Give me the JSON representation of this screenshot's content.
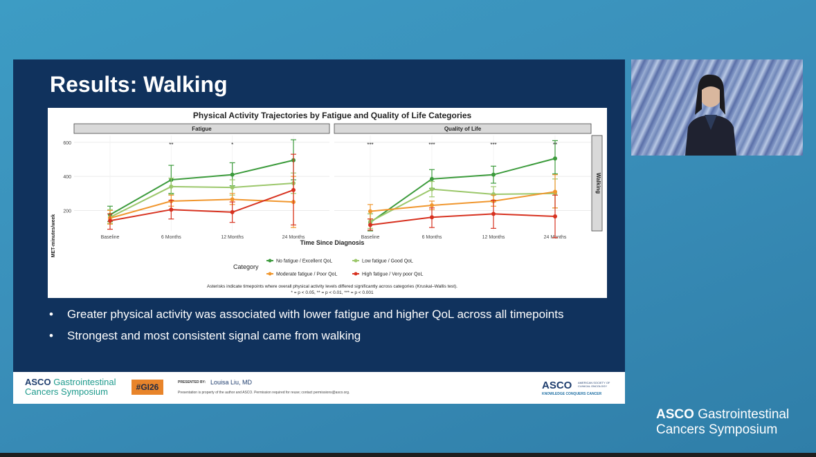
{
  "slide": {
    "title": "Results: Walking",
    "bullets": [
      "Greater physical activity was associated with lower fatigue and higher QoL across all timepoints",
      "Strongest and most consistent signal came from walking"
    ]
  },
  "footer": {
    "logo_main": "ASCO",
    "logo_line1": "Gastrointestinal",
    "logo_line2": "Cancers Symposium",
    "hashtag": "#GI26",
    "presented_by_label": "PRESENTED BY:",
    "presenter": "Louisa Liu, MD",
    "disclaimer": "Presentation is property of the author and ASCO. Permission required for reuse; contact permissions@asco.org.",
    "asco_right": "ASCO",
    "asco_right_small": "AMERICAN SOCIETY OF CLINICAL ONCOLOGY",
    "tagline": "KNOWLEDGE CONQUERS CANCER"
  },
  "corner_logo": {
    "main": "ASCO",
    "line1": "Gastrointestinal",
    "line2": "Cancers Symposium"
  },
  "chart_data": {
    "type": "line",
    "title": "Physical Activity Trajectories by Fatigue and Quality of Life Categories",
    "xlabel": "Time Since Diagnosis",
    "ylabel": "MET-minutes/week",
    "row_strip": "Walking",
    "categories": [
      "Baseline",
      "6 Months",
      "12 Months",
      "24 Months"
    ],
    "ylim": [
      80,
      640
    ],
    "yticks": [
      200,
      400,
      600
    ],
    "legend_title": "Category",
    "legend": [
      {
        "label": "No fatigue / Excellent QoL",
        "color": "#3c9b3c"
      },
      {
        "label": "Low fatigue / Good QoL",
        "color": "#9bc76a"
      },
      {
        "label": "Moderate fatigue / Poor QoL",
        "color": "#f0962d"
      },
      {
        "label": "High fatigue / Very poor QoL",
        "color": "#d7311f"
      }
    ],
    "footnote1": "Asterisks indicate timepoints where overall physical activity levels differed significantly across categories (Kruskal–Wallis test).",
    "footnote2": "* = p < 0.05, ** = p < 0.01, *** = p < 0.001",
    "panels": [
      {
        "name": "Fatigue",
        "significance": [
          "",
          "**",
          "*",
          ""
        ],
        "series": [
          {
            "color": "#3c9b3c",
            "values": [
              175,
              380,
              410,
              495
            ],
            "lower": [
              135,
              300,
              345,
              380
            ],
            "upper": [
              225,
              465,
              480,
              615
            ]
          },
          {
            "color": "#9bc76a",
            "values": [
              160,
              340,
              335,
              360
            ],
            "lower": [
              125,
              295,
              290,
              300
            ],
            "upper": [
              205,
              390,
              380,
              420
            ]
          },
          {
            "color": "#f0962d",
            "values": [
              155,
              255,
              265,
              250
            ],
            "lower": [
              120,
              225,
              235,
              100
            ],
            "upper": [
              200,
              290,
              300,
              400
            ]
          },
          {
            "color": "#d7311f",
            "values": [
              140,
              205,
              190,
              320
            ],
            "lower": [
              90,
              150,
              130,
              115
            ],
            "upper": [
              180,
              260,
              250,
              530
            ]
          }
        ]
      },
      {
        "name": "Quality of Life",
        "significance": [
          "***",
          "***",
          "***",
          "**"
        ],
        "series": [
          {
            "color": "#3c9b3c",
            "values": [
              130,
              385,
              410,
              505
            ],
            "lower": [
              80,
              330,
              360,
              415
            ],
            "upper": [
              180,
              440,
              460,
              610
            ]
          },
          {
            "color": "#9bc76a",
            "values": [
              135,
              325,
              295,
              300
            ],
            "lower": [
              95,
              280,
              250,
              215
            ],
            "upper": [
              180,
              370,
              340,
              385
            ]
          },
          {
            "color": "#f0962d",
            "values": [
              195,
              230,
              255,
              310
            ],
            "lower": [
              150,
              205,
              225,
              215
            ],
            "upper": [
              235,
              255,
              290,
              410
            ]
          },
          {
            "color": "#d7311f",
            "values": [
              115,
              160,
              180,
              165
            ],
            "lower": [
              85,
              100,
              95,
              40
            ],
            "upper": [
              150,
              215,
              260,
              290
            ]
          }
        ]
      }
    ]
  }
}
